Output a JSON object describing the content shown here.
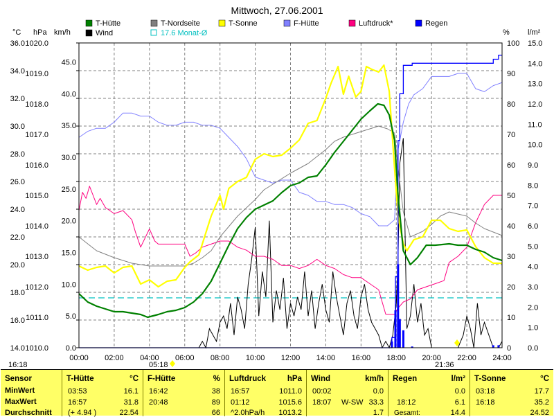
{
  "chart_data": {
    "type": "line",
    "title": "Mittwoch, 27.06.2001",
    "x_ticks": [
      "00:00",
      "02:00",
      "04:00",
      "06:00",
      "08:00",
      "10:00",
      "12:00",
      "14:00",
      "16:00",
      "18:00",
      "20:00",
      "22:00",
      "24:00"
    ],
    "x_range_hours": [
      0,
      24
    ],
    "grid": true,
    "axes": {
      "celsius": {
        "unit": "°C",
        "range": [
          14.0,
          36.0
        ],
        "ticks": [
          "14.0",
          "16.0",
          "18.0",
          "20.0",
          "22.0",
          "24.0",
          "26.0",
          "28.0",
          "30.0",
          "32.0",
          "34.0",
          "36.0"
        ]
      },
      "hpa": {
        "unit": "hPa",
        "range": [
          1010.0,
          1020.0
        ],
        "ticks": [
          "1010.0",
          "1011.0",
          "1012.0",
          "1013.0",
          "1014.0",
          "1015.0",
          "1016.0",
          "1017.0",
          "1018.0",
          "1019.0",
          "1020.0"
        ]
      },
      "kmh": {
        "unit": "km/h",
        "range": [
          0.0,
          48.0
        ],
        "ticks": [
          "0.0",
          "5.0",
          "10.0",
          "15.0",
          "20.0",
          "25.0",
          "30.0",
          "35.0",
          "40.0",
          "45.0"
        ]
      },
      "percent": {
        "unit": "%",
        "range": [
          0,
          100
        ],
        "ticks": [
          "0",
          "10",
          "20",
          "30",
          "40",
          "50",
          "60",
          "70",
          "80",
          "90",
          "100"
        ]
      },
      "rain": {
        "unit": "l/m²",
        "range": [
          0.0,
          15.0
        ],
        "ticks": [
          "0.0",
          "1.0",
          "2.0",
          "3.0",
          "4.0",
          "5.0",
          "6.0",
          "7.0",
          "8.0",
          "9.0",
          "10.0",
          "11.0",
          "12.0",
          "13.0",
          "14.0",
          "15.0"
        ]
      }
    },
    "legend": [
      {
        "name": "T-Hütte",
        "color": "#008000",
        "kind": "box"
      },
      {
        "name": "T-Nordseite",
        "color": "#808080",
        "kind": "box"
      },
      {
        "name": "T-Sonne",
        "color": "#ffff00",
        "kind": "box"
      },
      {
        "name": "F-Hütte",
        "color": "#8080ff",
        "kind": "box"
      },
      {
        "name": "Luftdruck*",
        "color": "#ff0080",
        "kind": "box"
      },
      {
        "name": "Regen",
        "color": "#0000ff",
        "kind": "box"
      },
      {
        "name": "Wind",
        "color": "#000000",
        "kind": "box"
      },
      {
        "name": "17.6 Monat-Ø",
        "color": "#00c0c0",
        "kind": "outline"
      }
    ],
    "monthly_avg_celsius": 17.6,
    "sunrise": "05:18",
    "sunset": "21:36",
    "left_time": "16:18",
    "series": [
      {
        "name": "T-Hütte",
        "axis": "celsius",
        "color": "#008000",
        "x": [
          0,
          0.5,
          1,
          1.5,
          2,
          2.5,
          3,
          3.5,
          3.9,
          4.5,
          5,
          5.5,
          6,
          6.5,
          7,
          7.5,
          8,
          8.5,
          9,
          9.5,
          10,
          10.5,
          11,
          11.5,
          12,
          12.5,
          13,
          13.5,
          14,
          14.5,
          15,
          15.5,
          16,
          16.5,
          16.95,
          17.3,
          17.6,
          17.9,
          18.1,
          18.4,
          18.8,
          19.2,
          19.7,
          20.2,
          21,
          21.5,
          22,
          22.5,
          23,
          23.5,
          24
        ],
        "y": [
          17.9,
          17.3,
          17.0,
          16.8,
          16.6,
          16.6,
          16.5,
          16.4,
          16.2,
          16.4,
          16.6,
          16.7,
          16.9,
          17.3,
          17.9,
          18.8,
          20.1,
          21.4,
          22.6,
          23.4,
          24.0,
          24.3,
          24.6,
          25.2,
          25.7,
          25.9,
          26.3,
          26.4,
          27.2,
          28.1,
          28.9,
          29.7,
          30.5,
          31.1,
          31.6,
          31.5,
          30.8,
          29.0,
          25.0,
          21.0,
          20.0,
          20.5,
          21.4,
          21.4,
          21.5,
          21.4,
          21.4,
          21.1,
          20.9,
          20.5,
          20.3
        ]
      },
      {
        "name": "T-Nordseite",
        "axis": "celsius",
        "color": "#808080",
        "x": [
          0,
          0.5,
          1,
          2,
          3,
          4,
          5,
          5.5,
          6,
          6.5,
          7,
          7.5,
          8,
          9,
          10,
          10.5,
          11,
          12,
          13,
          14,
          14.5,
          15,
          16,
          16.5,
          17,
          17.5,
          17.9,
          18.1,
          18.4,
          18.8,
          19.5,
          20,
          20.5,
          21,
          22,
          22.5,
          23,
          24
        ],
        "y": [
          22.0,
          21.5,
          21.0,
          20.5,
          20.1,
          19.9,
          19.9,
          19.9,
          19.9,
          20.1,
          20.5,
          21.0,
          22.0,
          23.5,
          24.7,
          25.4,
          25.8,
          26.6,
          27.3,
          28.3,
          28.9,
          29.2,
          29.6,
          29.8,
          30.0,
          29.8,
          29.5,
          27.0,
          23.8,
          22.0,
          22.4,
          22.9,
          23.5,
          23.8,
          23.5,
          23.0,
          22.6,
          22.1
        ]
      },
      {
        "name": "T-Sonne",
        "axis": "celsius",
        "color": "#ffff00",
        "x": [
          0,
          0.5,
          1,
          1.5,
          2,
          2.5,
          3,
          3.5,
          4,
          4.5,
          5,
          5.5,
          6,
          6.3,
          6.8,
          7,
          7.5,
          8,
          8.2,
          8.5,
          9,
          9.5,
          10,
          10.5,
          11,
          11.5,
          12,
          12.5,
          13,
          13.5,
          14,
          14.3,
          14.7,
          15,
          15.3,
          15.7,
          16,
          16.3,
          16.6,
          17,
          17.3,
          17.6,
          17.9,
          18.1,
          18.4,
          18.6,
          19,
          19.5,
          20,
          20.5,
          21,
          21.5,
          22,
          22.5,
          23,
          23.5,
          24
        ],
        "y": [
          19.9,
          19.6,
          19.8,
          19.9,
          19.4,
          19.8,
          19.9,
          18.6,
          18.9,
          18.4,
          18.8,
          18.9,
          19.8,
          20.2,
          20.7,
          21.5,
          23.5,
          25.0,
          24.0,
          25.5,
          26.0,
          26.3,
          27.6,
          28.0,
          27.8,
          27.9,
          28.4,
          29.0,
          30.2,
          30.4,
          32.0,
          33.1,
          34.3,
          32.3,
          33.6,
          32.1,
          32.5,
          34.3,
          34.1,
          33.9,
          34.4,
          32.5,
          27.0,
          23.5,
          21.5,
          21.0,
          21.8,
          22.0,
          23.2,
          23.2,
          22.6,
          22.4,
          22.5,
          21.3,
          20.5,
          20.1,
          20.1
        ]
      },
      {
        "name": "F-Hütte",
        "axis": "percent",
        "color": "#8080ff",
        "x": [
          0,
          0.5,
          1,
          1.5,
          2,
          2.5,
          3,
          3.5,
          4,
          4.5,
          5,
          5.5,
          6,
          6.5,
          7,
          7.5,
          8,
          8.5,
          9,
          9.5,
          10,
          10.5,
          11,
          11.5,
          12,
          12.5,
          13,
          13.5,
          14,
          14.5,
          15,
          15.5,
          16,
          16.5,
          17,
          17.5,
          17.9,
          18.1,
          18.4,
          18.7,
          19,
          19.5,
          20,
          20.5,
          21,
          21.5,
          22,
          22.5,
          23,
          23.5,
          24
        ],
        "y": [
          69,
          71,
          72,
          72,
          74,
          77,
          77,
          76,
          76,
          74,
          73,
          73,
          74,
          74,
          73,
          73,
          72,
          69,
          66,
          62,
          56,
          55,
          54,
          55,
          55,
          51,
          50,
          48,
          48,
          47,
          47,
          46,
          44,
          43,
          40,
          40,
          42,
          65,
          74,
          80,
          83,
          85,
          89,
          89,
          89,
          90,
          90,
          85,
          84,
          86,
          87
        ]
      },
      {
        "name": "Luftdruck",
        "axis": "hpa",
        "color": "#ff0080",
        "x": [
          0,
          0.2,
          0.4,
          0.6,
          0.8,
          1,
          1.2,
          1.5,
          2,
          2.5,
          3,
          3.2,
          3.5,
          4,
          4.3,
          4.5,
          5,
          5.5,
          6,
          6.3,
          6.6,
          7,
          7.5,
          8,
          8.5,
          9,
          9.5,
          10,
          10.5,
          11,
          11.5,
          12,
          12.5,
          13,
          13.5,
          14,
          14.5,
          15,
          15.5,
          16,
          16.5,
          17,
          17.4,
          17.7,
          17.9,
          18.1,
          18.4,
          18.8,
          19.2,
          19.7,
          20.2,
          20.7,
          21,
          21.5,
          22,
          22.5,
          23,
          23.5,
          24
        ],
        "y": [
          1014.5,
          1015.1,
          1014.9,
          1015.3,
          1015.0,
          1014.7,
          1014.9,
          1014.6,
          1014.4,
          1014.5,
          1014.2,
          1013.8,
          1013.3,
          1013.9,
          1013.5,
          1013.4,
          1013.4,
          1013.4,
          1013.4,
          1013.0,
          1013.1,
          1013.3,
          1013.4,
          1013.5,
          1013.5,
          1013.3,
          1013.2,
          1013.0,
          1013.0,
          1012.9,
          1012.7,
          1012.7,
          1012.6,
          1012.7,
          1012.9,
          1012.7,
          1012.6,
          1012.4,
          1012.3,
          1012.3,
          1012.1,
          1011.9,
          1011.1,
          1011.1,
          1011.1,
          1011.3,
          1011.5,
          1011.6,
          1011.9,
          1012.0,
          1012.1,
          1012.2,
          1012.8,
          1013.0,
          1013.3,
          1014.1,
          1014.7,
          1015.0,
          1015.0
        ]
      },
      {
        "name": "Regen",
        "axis": "rain",
        "color": "#0000ff",
        "x": [
          0,
          17.7,
          17.75,
          17.95,
          18.1,
          18.2,
          18.4,
          18.6,
          18.9,
          19.5,
          20,
          21,
          22,
          22.5,
          23,
          23.5,
          23.8,
          24
        ],
        "y": [
          0,
          0,
          0.5,
          3.5,
          10.2,
          12.5,
          13.9,
          13.9,
          14.0,
          14.0,
          14.0,
          14.0,
          14.0,
          14.0,
          14.0,
          14.2,
          14.4,
          14.4
        ]
      },
      {
        "name": "Wind",
        "axis": "kmh",
        "color": "#000000",
        "x": [
          0,
          6.8,
          7.0,
          7.2,
          7.4,
          7.6,
          7.8,
          8.0,
          8.2,
          8.4,
          8.6,
          8.8,
          9.0,
          9.2,
          9.4,
          9.6,
          9.8,
          10.0,
          10.2,
          10.4,
          10.6,
          10.8,
          11.0,
          11.2,
          11.4,
          11.6,
          11.8,
          12.0,
          12.2,
          12.4,
          12.6,
          12.8,
          13.0,
          13.2,
          13.4,
          13.6,
          13.8,
          14.0,
          14.2,
          14.4,
          14.6,
          14.8,
          15.0,
          15.2,
          15.4,
          15.6,
          15.8,
          16.0,
          16.2,
          16.4,
          16.6,
          16.8,
          17.0,
          17.2,
          17.4,
          17.6,
          17.8,
          18.0,
          18.1,
          18.2,
          18.4,
          18.6,
          18.8,
          19.0,
          19.2,
          19.4,
          19.6,
          19.8,
          20.0,
          21.5,
          21.8,
          22.0,
          22.2,
          22.4,
          22.6,
          22.8,
          23.0,
          23.5,
          23.8,
          24
        ],
        "y": [
          0,
          0,
          1,
          0,
          3,
          2,
          1,
          4,
          5,
          3,
          7,
          2,
          8,
          6,
          3,
          10,
          14,
          19,
          5,
          12,
          8,
          20,
          4,
          9,
          6,
          11,
          3,
          7,
          5,
          8,
          6,
          12,
          5,
          9,
          3,
          7,
          10,
          6,
          4,
          12,
          8,
          5,
          2,
          7,
          9,
          5,
          3,
          8,
          10,
          6,
          4,
          3,
          2,
          0,
          1,
          0,
          2,
          7,
          14,
          29,
          33,
          3,
          5,
          10,
          4,
          7,
          2,
          3,
          0,
          0,
          2,
          5,
          3,
          0,
          7,
          2,
          4,
          0,
          0,
          1
        ]
      }
    ]
  },
  "stats": {
    "thuette": {
      "hdr": "T-Hütte",
      "unit": "°C",
      "min_t": "03:53",
      "min_v": "16.1",
      "max_t": "16:57",
      "max_v": "31.8",
      "avg_note": "(+ 4.94 )",
      "avg_v": "22.54"
    },
    "fhuette": {
      "hdr": "F-Hütte",
      "unit": "%",
      "min_t": "16:42",
      "min_v": "38",
      "max_t": "20:48",
      "max_v": "89",
      "avg_v": "66"
    },
    "luftdruck": {
      "hdr": "Luftdruck",
      "unit": "hPa",
      "min_t": "16:57",
      "min_v": "1011.0",
      "max_t": "01:12",
      "max_v": "1015.6",
      "avg_note": "^2.0hPa/h",
      "avg_v": "1013.2"
    },
    "wind": {
      "hdr": "Wind",
      "unit": "km/h",
      "min_t": "00:02",
      "min_v": "0.0",
      "max_t": "18:07",
      "max_dir": "W-SW",
      "max_v": "33.3",
      "avg_v": "1.7"
    },
    "regen": {
      "hdr": "Regen",
      "unit": "l/m²",
      "min_v": "0.0",
      "max_t": "18:12",
      "max_v": "6.1",
      "avg_note": "Gesamt:",
      "avg_v": "14.4"
    },
    "tsonne": {
      "hdr": "T-Sonne",
      "unit": "°C",
      "min_t": "03:18",
      "min_v": "17.7",
      "max_t": "16:18",
      "max_v": "35.2",
      "avg_v": "24.52"
    }
  },
  "stat_labels": {
    "sensor": "Sensor",
    "min": "MinWert",
    "max": "MaxWert",
    "avg": "Durchschnitt"
  }
}
